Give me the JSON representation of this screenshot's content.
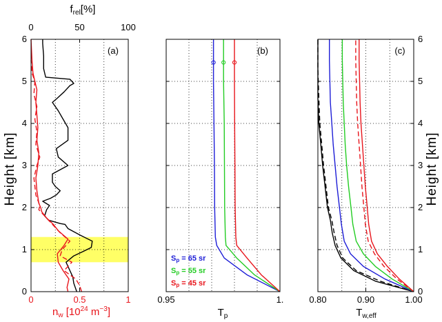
{
  "colors": {
    "black": "#000000",
    "red": "#e8141b",
    "green": "#22cc22",
    "blue": "#1c1cd6",
    "highlight": "#ffff66"
  },
  "chart_data": [
    {
      "type": "line",
      "panel_label": "(a)",
      "xlabel_bottom": "n_w [10^24 m^-3]",
      "xlabel_top": "f_rel [%]",
      "ylabel": "Height [km]",
      "xlim_bottom": [
        0,
        1
      ],
      "xlim_top": [
        0,
        100
      ],
      "ylim": [
        0,
        6
      ],
      "xticks_bottom": [
        "0",
        "0.5",
        "1"
      ],
      "xticks_top": [
        "0",
        "50",
        "100"
      ],
      "yticks": [
        "0",
        "1",
        "2",
        "3",
        "4",
        "5",
        "6"
      ],
      "grid": true,
      "highlight_band_km": [
        0.7,
        1.3
      ],
      "series": [
        {
          "color": "#000000",
          "style": "solid",
          "axis": "top",
          "points": [
            [
              47,
              0
            ],
            [
              44,
              0.2
            ],
            [
              43,
              0.35
            ],
            [
              40,
              0.5
            ],
            [
              36,
              0.7
            ],
            [
              44,
              0.85
            ],
            [
              53,
              0.95
            ],
            [
              62,
              1.05
            ],
            [
              63,
              1.2
            ],
            [
              50,
              1.35
            ],
            [
              38,
              1.5
            ],
            [
              35,
              1.6
            ],
            [
              30,
              1.62
            ],
            [
              18,
              1.7
            ],
            [
              14,
              1.8
            ],
            [
              16,
              1.95
            ],
            [
              19,
              2.05
            ],
            [
              12,
              2.15
            ],
            [
              20,
              2.22
            ],
            [
              26,
              2.3
            ],
            [
              30,
              2.4
            ],
            [
              25,
              2.5
            ],
            [
              22,
              2.6
            ],
            [
              22,
              2.8
            ],
            [
              38,
              3.0
            ],
            [
              28,
              3.2
            ],
            [
              26,
              3.4
            ],
            [
              38,
              3.6
            ],
            [
              38,
              3.9
            ],
            [
              33,
              4.1
            ],
            [
              28,
              4.3
            ],
            [
              22,
              4.5
            ],
            [
              27,
              4.6
            ],
            [
              34,
              4.75
            ],
            [
              40,
              4.9
            ],
            [
              44,
              4.95
            ],
            [
              40,
              5.05
            ],
            [
              15,
              5.1
            ],
            [
              13,
              5.3
            ],
            [
              13,
              5.6
            ],
            [
              12,
              5.9
            ],
            [
              12,
              6.0
            ]
          ]
        },
        {
          "color": "#e8141b",
          "style": "solid",
          "axis": "bottom",
          "points": [
            [
              0.38,
              0
            ],
            [
              0.37,
              0.1
            ],
            [
              0.39,
              0.3
            ],
            [
              0.33,
              0.5
            ],
            [
              0.28,
              0.7
            ],
            [
              0.27,
              0.9
            ],
            [
              0.34,
              1.1
            ],
            [
              0.38,
              1.25
            ],
            [
              0.28,
              1.45
            ],
            [
              0.23,
              1.6
            ],
            [
              0.16,
              1.75
            ],
            [
              0.11,
              1.9
            ],
            [
              0.1,
              2.0
            ],
            [
              0.08,
              2.1
            ],
            [
              0.06,
              2.4
            ],
            [
              0.05,
              2.7
            ],
            [
              0.07,
              3.0
            ],
            [
              0.08,
              3.3
            ],
            [
              0.06,
              3.6
            ],
            [
              0.07,
              3.9
            ],
            [
              0.06,
              4.2
            ],
            [
              0.05,
              4.5
            ],
            [
              0.06,
              4.8
            ],
            [
              0.04,
              5.0
            ],
            [
              0.02,
              5.2
            ],
            [
              0.01,
              5.5
            ],
            [
              0.0,
              6.0
            ]
          ]
        },
        {
          "color": "#e8141b",
          "style": "dashed",
          "axis": "bottom",
          "points": [
            [
              0.52,
              0
            ],
            [
              0.5,
              0.15
            ],
            [
              0.46,
              0.3
            ],
            [
              0.34,
              0.5
            ],
            [
              0.42,
              0.7
            ],
            [
              0.3,
              0.85
            ],
            [
              0.32,
              1.0
            ],
            [
              0.4,
              1.2
            ],
            [
              0.3,
              1.4
            ],
            [
              0.22,
              1.6
            ],
            [
              0.14,
              1.8
            ],
            [
              0.08,
              1.95
            ],
            [
              0.09,
              2.05
            ],
            [
              0.05,
              2.3
            ],
            [
              0.03,
              2.7
            ],
            [
              0.06,
              3.0
            ],
            [
              0.09,
              3.2
            ],
            [
              0.05,
              3.5
            ],
            [
              0.06,
              3.8
            ],
            [
              0.04,
              4.1
            ],
            [
              0.06,
              4.4
            ],
            [
              0.03,
              4.7
            ],
            [
              0.04,
              5.0
            ],
            [
              0.01,
              5.2
            ],
            [
              0.0,
              5.5
            ]
          ]
        }
      ]
    },
    {
      "type": "line",
      "panel_label": "(b)",
      "xlabel": "T_p",
      "xlim": [
        0.95,
        1.0
      ],
      "xticks": [
        "0.95",
        "1."
      ],
      "ylim": [
        0,
        6
      ],
      "grid": true,
      "legend": {
        "placement": "bottom-left",
        "entries": [
          {
            "text": "S_p = 65 sr",
            "color": "#1c1cd6"
          },
          {
            "text": "S_p = 55 sr",
            "color": "#22cc22"
          },
          {
            "text": "S_p = 45 sr",
            "color": "#e8141b"
          }
        ]
      },
      "series": [
        {
          "name": "S_p = 65 sr",
          "color": "#1c1cd6",
          "points": [
            [
              1.0,
              0
            ],
            [
              0.9855,
              0.4
            ],
            [
              0.9755,
              0.8
            ],
            [
              0.9722,
              1.1
            ],
            [
              0.9716,
              1.3
            ],
            [
              0.9713,
              2.0
            ],
            [
              0.9712,
              3.0
            ],
            [
              0.971,
              4.0
            ],
            [
              0.9708,
              5.0
            ],
            [
              0.9708,
              5.45
            ],
            [
              0.9708,
              6.0
            ]
          ],
          "marker_y": 5.45
        },
        {
          "name": "S_p = 55 sr",
          "color": "#22cc22",
          "points": [
            [
              1.0,
              0
            ],
            [
              0.9888,
              0.4
            ],
            [
              0.981,
              0.8
            ],
            [
              0.9763,
              1.1
            ],
            [
              0.976,
              1.3
            ],
            [
              0.9757,
              2.0
            ],
            [
              0.9756,
              3.0
            ],
            [
              0.9755,
              4.0
            ],
            [
              0.9752,
              5.0
            ],
            [
              0.9752,
              5.45
            ],
            [
              0.9752,
              6.0
            ]
          ],
          "marker_y": 5.45
        },
        {
          "name": "S_p = 45 sr",
          "color": "#e8141b",
          "points": [
            [
              1.0,
              0
            ],
            [
              0.9918,
              0.4
            ],
            [
              0.9855,
              0.8
            ],
            [
              0.981,
              1.1
            ],
            [
              0.9806,
              1.3
            ],
            [
              0.9803,
              2.0
            ],
            [
              0.9802,
              3.0
            ],
            [
              0.9801,
              4.0
            ],
            [
              0.98,
              5.0
            ],
            [
              0.98,
              5.45
            ],
            [
              0.98,
              6.0
            ]
          ],
          "marker_y": 5.45
        }
      ]
    },
    {
      "type": "line",
      "panel_label": "(c)",
      "xlabel": "T_w,eff",
      "xlim": [
        0.8,
        1.0
      ],
      "xticks": [
        "0.80",
        "0.90",
        "1.00"
      ],
      "ylim": [
        0,
        6
      ],
      "yticks": [
        "0",
        "1",
        "2",
        "3",
        "4",
        "5",
        "6"
      ],
      "ylabel_right": "Height [km]",
      "grid": true,
      "series": [
        {
          "color": "#000000",
          "style": "solid",
          "points": [
            [
              1.0,
              0
            ],
            [
              0.92,
              0.25
            ],
            [
              0.875,
              0.5
            ],
            [
              0.848,
              0.8
            ],
            [
              0.836,
              1.1
            ],
            [
              0.83,
              1.4
            ],
            [
              0.826,
              1.7
            ],
            [
              0.82,
              2.0
            ],
            [
              0.815,
              2.5
            ],
            [
              0.81,
              3.0
            ],
            [
              0.806,
              3.5
            ],
            [
              0.802,
              4.0
            ],
            [
              0.8,
              4.6
            ],
            [
              0.8,
              5.3
            ],
            [
              0.8,
              6.0
            ]
          ]
        },
        {
          "color": "#000000",
          "style": "dashed",
          "points": [
            [
              1.0,
              0
            ],
            [
              0.93,
              0.25
            ],
            [
              0.88,
              0.5
            ],
            [
              0.852,
              0.8
            ],
            [
              0.84,
              1.1
            ],
            [
              0.834,
              1.4
            ],
            [
              0.829,
              1.7
            ],
            [
              0.822,
              2.0
            ],
            [
              0.817,
              2.5
            ],
            [
              0.812,
              3.0
            ],
            [
              0.808,
              3.5
            ],
            [
              0.804,
              4.0
            ],
            [
              0.802,
              4.6
            ],
            [
              0.8,
              5.3
            ],
            [
              0.8,
              6.0
            ]
          ]
        },
        {
          "color": "#1c1cd6",
          "style": "solid",
          "points": [
            [
              1.0,
              0
            ],
            [
              0.94,
              0.3
            ],
            [
              0.895,
              0.6
            ],
            [
              0.868,
              0.9
            ],
            [
              0.855,
              1.2
            ],
            [
              0.849,
              1.6
            ],
            [
              0.845,
              2.0
            ],
            [
              0.84,
              2.5
            ],
            [
              0.836,
              3.0
            ],
            [
              0.832,
              3.5
            ],
            [
              0.829,
              4.0
            ],
            [
              0.826,
              4.5
            ],
            [
              0.825,
              5.0
            ],
            [
              0.824,
              5.5
            ],
            [
              0.824,
              6.0
            ]
          ]
        },
        {
          "color": "#22cc22",
          "style": "solid",
          "points": [
            [
              1.0,
              0
            ],
            [
              0.955,
              0.3
            ],
            [
              0.92,
              0.6
            ],
            [
              0.895,
              0.9
            ],
            [
              0.88,
              1.2
            ],
            [
              0.873,
              1.6
            ],
            [
              0.869,
              2.0
            ],
            [
              0.864,
              2.5
            ],
            [
              0.86,
              3.0
            ],
            [
              0.857,
              3.5
            ],
            [
              0.855,
              4.0
            ],
            [
              0.853,
              4.5
            ],
            [
              0.852,
              5.0
            ],
            [
              0.851,
              5.5
            ],
            [
              0.851,
              6.0
            ]
          ]
        },
        {
          "color": "#e8141b",
          "style": "solid",
          "points": [
            [
              1.0,
              0
            ],
            [
              0.97,
              0.3
            ],
            [
              0.945,
              0.6
            ],
            [
              0.924,
              0.9
            ],
            [
              0.912,
              1.2
            ],
            [
              0.906,
              1.6
            ],
            [
              0.903,
              2.0
            ],
            [
              0.899,
              2.5
            ],
            [
              0.896,
              3.0
            ],
            [
              0.893,
              3.5
            ],
            [
              0.89,
              4.0
            ],
            [
              0.888,
              4.5
            ],
            [
              0.887,
              5.0
            ],
            [
              0.886,
              5.5
            ],
            [
              0.886,
              6.0
            ]
          ]
        },
        {
          "color": "#e8141b",
          "style": "dashed",
          "points": [
            [
              1.0,
              0
            ],
            [
              0.965,
              0.3
            ],
            [
              0.938,
              0.6
            ],
            [
              0.918,
              0.9
            ],
            [
              0.905,
              1.2
            ],
            [
              0.899,
              1.6
            ],
            [
              0.896,
              2.0
            ],
            [
              0.892,
              2.5
            ],
            [
              0.889,
              3.0
            ],
            [
              0.886,
              3.5
            ],
            [
              0.883,
              4.0
            ],
            [
              0.881,
              4.5
            ],
            [
              0.88,
              5.0
            ],
            [
              0.879,
              5.5
            ],
            [
              0.879,
              6.0
            ]
          ]
        }
      ]
    }
  ]
}
